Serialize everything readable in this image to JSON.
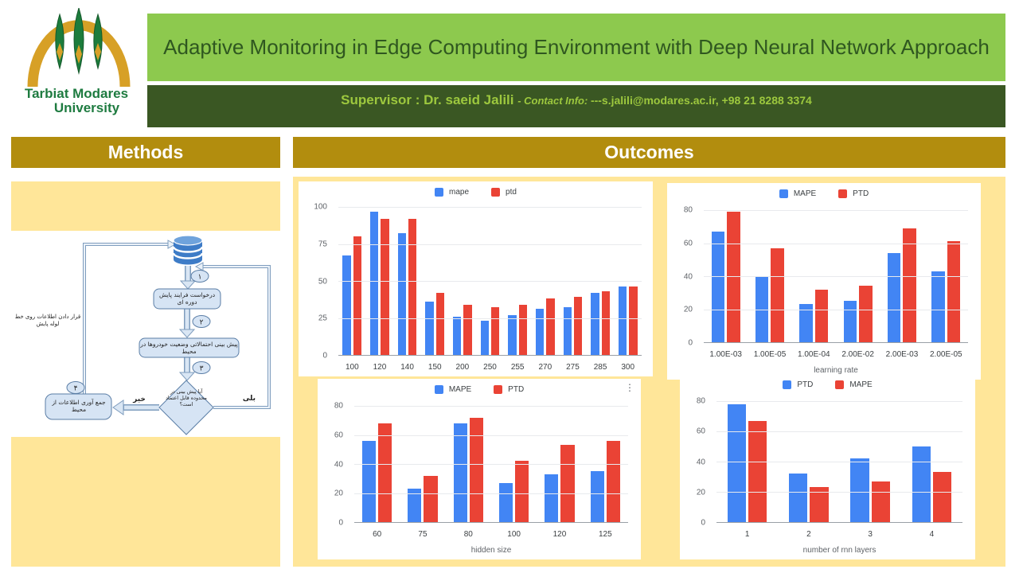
{
  "header": {
    "title": "Adaptive Monitoring in Edge Computing Environment with Deep Neural Network Approach",
    "supervisor": {
      "name_part": "Supervisor : Dr. saeid Jalili ",
      "contact_label": "- Contact Info: ",
      "contact_value": "---s.jalili@modares.ac.ir, +98 21 8288 3374"
    },
    "logo": {
      "line1": "Tarbiat Modares",
      "line2": "University"
    }
  },
  "sections": {
    "methods_title": "Methods",
    "outcomes_title": "Outcomes"
  },
  "flowchart": {
    "step1_num": "۱",
    "step2_num": "۲",
    "step3_num": "۳",
    "step4_num": "۴",
    "box_request": "درخواست فرایند پایش دوره ای",
    "box_predict": "پیش بینی احتمالاتی وضعیت خودروها در محیط",
    "diamond_question": "آیا پیش بینی در محدوده قابل اعتماد است؟",
    "box_collect": "جمع آوری اطلاعات از محیط",
    "label_no": "خیر",
    "label_yes": "بلی",
    "label_pipeline": "قرار دادن اطلاعات روی خط لوله پایش"
  },
  "ui": {
    "menu_glyph": "⋮"
  },
  "colors": {
    "light_green": "#8DC94E",
    "dark_green": "#3A5723",
    "gold_header": "#B28D0E",
    "light_yellow": "#FFE699",
    "chart_blue": "#4285F4",
    "chart_red": "#EA4335",
    "flow_fill": "#D6E4F4",
    "flow_border": "#5B7EA6"
  },
  "chart_data": [
    {
      "type": "bar",
      "categories": [
        "100",
        "120",
        "140",
        "150",
        "200",
        "250",
        "255",
        "270",
        "275",
        "285",
        "300"
      ],
      "series": [
        {
          "name": "mape",
          "color": "#4285F4",
          "values": [
            67,
            97,
            82,
            36,
            26,
            23,
            27,
            31,
            32,
            42,
            46
          ]
        },
        {
          "name": "ptd",
          "color": "#EA4335",
          "values": [
            80,
            92,
            92,
            42,
            34,
            32,
            34,
            38,
            39,
            43,
            46
          ]
        }
      ],
      "yticks": [
        0,
        25,
        50,
        75,
        100
      ],
      "ylim": [
        0,
        100
      ],
      "xlabel": "",
      "legend_position": "top",
      "grid": true
    },
    {
      "type": "bar",
      "categories": [
        "1.00E-03",
        "1.00E-05",
        "1.00E-04",
        "2.00E-02",
        "2.00E-03",
        "2.00E-05"
      ],
      "series": [
        {
          "name": "MAPE",
          "color": "#4285F4",
          "values": [
            67,
            40,
            23,
            25,
            54,
            43
          ]
        },
        {
          "name": "PTD",
          "color": "#EA4335",
          "values": [
            79,
            57,
            32,
            34,
            69,
            61
          ]
        }
      ],
      "yticks": [
        0,
        20,
        40,
        60,
        80
      ],
      "ylim": [
        0,
        80
      ],
      "xlabel": "learning rate",
      "legend_position": "top",
      "grid": true
    },
    {
      "type": "bar",
      "categories": [
        "60",
        "75",
        "80",
        "100",
        "120",
        "125"
      ],
      "series": [
        {
          "name": "MAPE",
          "color": "#4285F4",
          "values": [
            56,
            23,
            68,
            27,
            33,
            35
          ]
        },
        {
          "name": "PTD",
          "color": "#EA4335",
          "values": [
            68,
            32,
            72,
            42,
            53,
            56
          ]
        }
      ],
      "yticks": [
        0,
        20,
        40,
        60,
        80
      ],
      "ylim": [
        0,
        80
      ],
      "xlabel": "hidden size",
      "legend_position": "top",
      "grid": true
    },
    {
      "type": "bar",
      "categories": [
        "1",
        "2",
        "3",
        "4"
      ],
      "series": [
        {
          "name": "PTD",
          "color": "#4285F4",
          "values": [
            78,
            32,
            42,
            50
          ]
        },
        {
          "name": "MAPE",
          "color": "#EA4335",
          "values": [
            67,
            23,
            27,
            33
          ]
        }
      ],
      "yticks": [
        0,
        20,
        40,
        60,
        80
      ],
      "ylim": [
        0,
        80
      ],
      "xlabel": "number of rnn layers",
      "legend_position": "top",
      "grid": true
    }
  ]
}
